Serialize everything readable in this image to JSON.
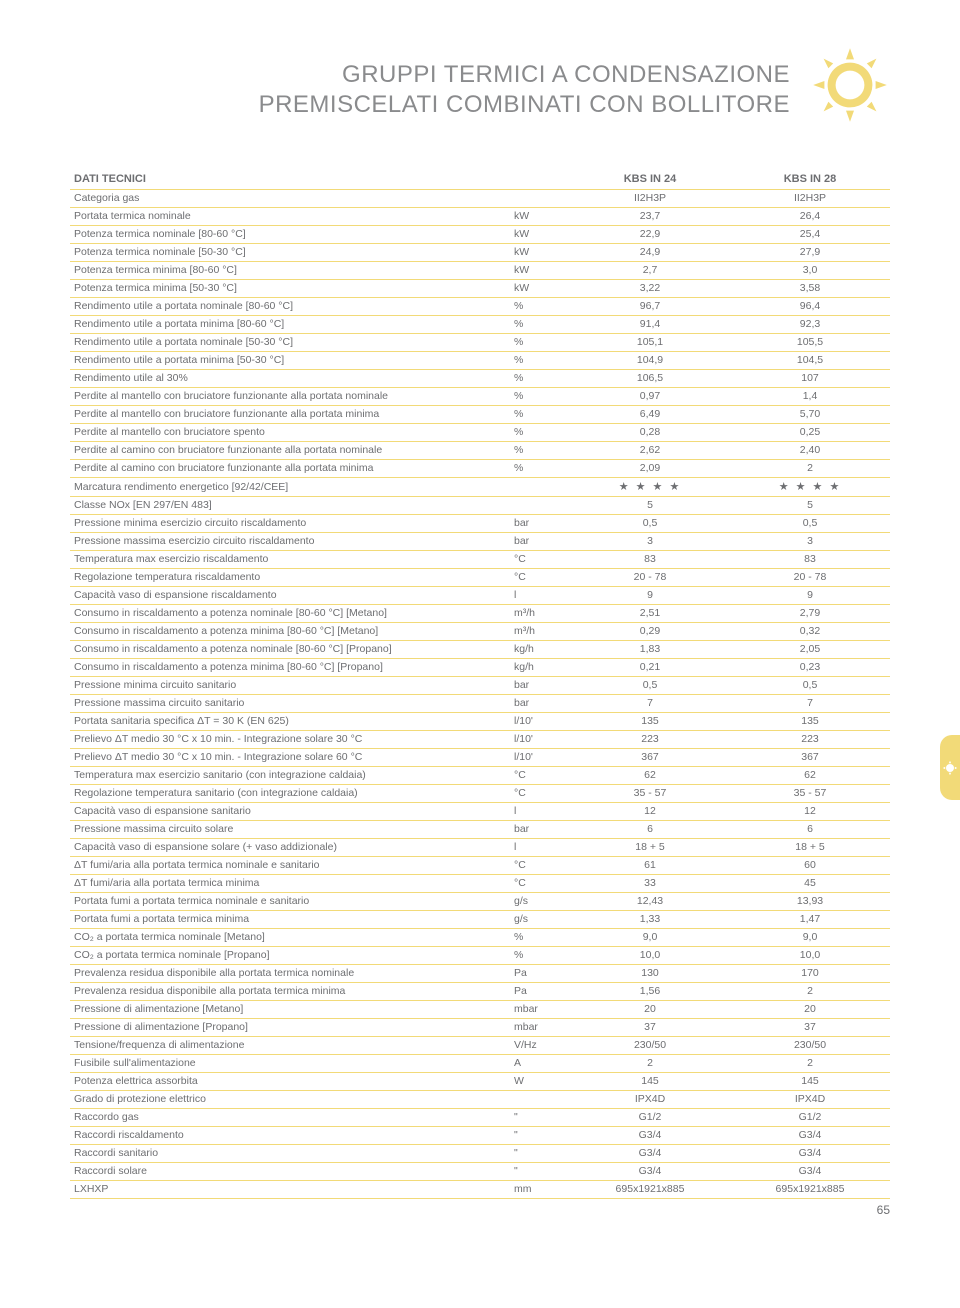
{
  "title_line1": "GRUPPI TERMICI A CONDENSAZIONE",
  "title_line2": "PREMISCELATI COMBINATI CON BOLLITORE",
  "page_number": "65",
  "icon_colors": {
    "fill": "#f2da78",
    "stroke": "#ffffff",
    "rule": "#f2da78"
  },
  "table": {
    "header": {
      "c0": "DATI TECNICI",
      "c1": "",
      "c2": "KBS IN 24",
      "c3": "KBS IN 28"
    },
    "rows": [
      {
        "label": "Categoria gas",
        "unit": "",
        "v1": "II2H3P",
        "v2": "II2H3P"
      },
      {
        "label": "Portata termica nominale",
        "unit": "kW",
        "v1": "23,7",
        "v2": "26,4"
      },
      {
        "label": "Potenza termica nominale [80-60 °C]",
        "unit": "kW",
        "v1": "22,9",
        "v2": "25,4"
      },
      {
        "label": "Potenza termica nominale [50-30 °C]",
        "unit": "kW",
        "v1": "24,9",
        "v2": "27,9"
      },
      {
        "label": "Potenza termica minima [80-60 °C]",
        "unit": "kW",
        "v1": "2,7",
        "v2": "3,0"
      },
      {
        "label": "Potenza termica minima [50-30 °C]",
        "unit": "kW",
        "v1": "3,22",
        "v2": "3,58"
      },
      {
        "label": "Rendimento utile a portata nominale [80-60 °C]",
        "unit": "%",
        "v1": "96,7",
        "v2": "96,4"
      },
      {
        "label": "Rendimento utile a portata minima [80-60 °C]",
        "unit": "%",
        "v1": "91,4",
        "v2": "92,3"
      },
      {
        "label": "Rendimento utile a portata nominale [50-30 °C]",
        "unit": "%",
        "v1": "105,1",
        "v2": "105,5"
      },
      {
        "label": "Rendimento utile a portata minima [50-30 °C]",
        "unit": "%",
        "v1": "104,9",
        "v2": "104,5"
      },
      {
        "label": "Rendimento utile al 30%",
        "unit": "%",
        "v1": "106,5",
        "v2": "107"
      },
      {
        "label": "Perdite al mantello con bruciatore funzionante alla portata nominale",
        "unit": "%",
        "v1": "0,97",
        "v2": "1,4"
      },
      {
        "label": "Perdite al mantello con bruciatore funzionante alla portata minima",
        "unit": "%",
        "v1": "6,49",
        "v2": "5,70"
      },
      {
        "label": "Perdite al mantello con bruciatore spento",
        "unit": "%",
        "v1": "0,28",
        "v2": "0,25"
      },
      {
        "label": "Perdite al camino con bruciatore funzionante alla portata nominale",
        "unit": "%",
        "v1": "2,62",
        "v2": "2,40"
      },
      {
        "label": "Perdite al camino con bruciatore funzionante alla portata minima",
        "unit": "%",
        "v1": "2,09",
        "v2": "2"
      },
      {
        "label": "Marcatura rendimento energetico [92/42/CEE]",
        "unit": "",
        "v1": "★ ★ ★ ★",
        "v2": "★ ★ ★ ★",
        "stars": true
      },
      {
        "label": "Classe NOx [EN 297/EN 483]",
        "unit": "",
        "v1": "5",
        "v2": "5"
      },
      {
        "label": "Pressione minima esercizio circuito riscaldamento",
        "unit": "bar",
        "v1": "0,5",
        "v2": "0,5"
      },
      {
        "label": "Pressione massima esercizio circuito riscaldamento",
        "unit": "bar",
        "v1": "3",
        "v2": "3"
      },
      {
        "label": "Temperatura max esercizio riscaldamento",
        "unit": "°C",
        "v1": "83",
        "v2": "83"
      },
      {
        "label": "Regolazione temperatura riscaldamento",
        "unit": "°C",
        "v1": "20 - 78",
        "v2": "20 - 78"
      },
      {
        "label": "Capacità vaso di espansione riscaldamento",
        "unit": "l",
        "v1": "9",
        "v2": "9"
      },
      {
        "label": "Consumo in riscaldamento a potenza nominale [80-60 °C] [Metano]",
        "unit": "m³/h",
        "v1": "2,51",
        "v2": "2,79"
      },
      {
        "label": "Consumo in riscaldamento a potenza minima [80-60 °C] [Metano]",
        "unit": "m³/h",
        "v1": "0,29",
        "v2": "0,32"
      },
      {
        "label": "Consumo in riscaldamento a potenza nominale [80-60 °C] [Propano]",
        "unit": "kg/h",
        "v1": "1,83",
        "v2": "2,05"
      },
      {
        "label": "Consumo in riscaldamento a potenza minima [80-60 °C] [Propano]",
        "unit": "kg/h",
        "v1": "0,21",
        "v2": "0,23"
      },
      {
        "label": "Pressione minima circuito sanitario",
        "unit": "bar",
        "v1": "0,5",
        "v2": "0,5"
      },
      {
        "label": "Pressione massima circuito sanitario",
        "unit": "bar",
        "v1": "7",
        "v2": "7"
      },
      {
        "label": "Portata sanitaria specifica ΔT = 30 K (EN 625)",
        "unit": "l/10'",
        "v1": "135",
        "v2": "135"
      },
      {
        "label": "Prelievo ΔT medio 30 °C x 10 min. - Integrazione solare 30 °C",
        "unit": "l/10'",
        "v1": "223",
        "v2": "223"
      },
      {
        "label": "Prelievo ΔT medio 30 °C x 10 min. - Integrazione solare 60 °C",
        "unit": "l/10'",
        "v1": "367",
        "v2": "367"
      },
      {
        "label": "Temperatura max esercizio sanitario (con integrazione caldaia)",
        "unit": "°C",
        "v1": "62",
        "v2": "62"
      },
      {
        "label": "Regolazione temperatura sanitario (con integrazione caldaia)",
        "unit": "°C",
        "v1": "35 - 57",
        "v2": "35 - 57"
      },
      {
        "label": "Capacità vaso di espansione sanitario",
        "unit": "l",
        "v1": "12",
        "v2": "12"
      },
      {
        "label": "Pressione massima circuito solare",
        "unit": "bar",
        "v1": "6",
        "v2": "6"
      },
      {
        "label": "Capacità vaso di espansione solare (+ vaso addizionale)",
        "unit": "l",
        "v1": "18 + 5",
        "v2": "18 + 5"
      },
      {
        "label": "ΔT fumi/aria alla portata termica nominale e sanitario",
        "unit": "°C",
        "v1": "61",
        "v2": "60"
      },
      {
        "label": "ΔT fumi/aria alla portata termica minima",
        "unit": "°C",
        "v1": "33",
        "v2": "45"
      },
      {
        "label": "Portata fumi a portata termica nominale e sanitario",
        "unit": "g/s",
        "v1": "12,43",
        "v2": "13,93"
      },
      {
        "label": "Portata fumi a portata termica minima",
        "unit": "g/s",
        "v1": "1,33",
        "v2": "1,47"
      },
      {
        "label": "CO₂ a portata termica nominale [Metano]",
        "unit": "%",
        "v1": "9,0",
        "v2": "9,0"
      },
      {
        "label": "CO₂ a portata termica nominale [Propano]",
        "unit": "%",
        "v1": "10,0",
        "v2": "10,0"
      },
      {
        "label": "Prevalenza residua disponibile alla portata termica nominale",
        "unit": "Pa",
        "v1": "130",
        "v2": "170"
      },
      {
        "label": "Prevalenza residua disponibile alla portata termica minima",
        "unit": "Pa",
        "v1": "1,56",
        "v2": "2"
      },
      {
        "label": "Pressione di alimentazione [Metano]",
        "unit": "mbar",
        "v1": "20",
        "v2": "20"
      },
      {
        "label": "Pressione di alimentazione [Propano]",
        "unit": "mbar",
        "v1": "37",
        "v2": "37"
      },
      {
        "label": "Tensione/frequenza di alimentazione",
        "unit": "V/Hz",
        "v1": "230/50",
        "v2": "230/50"
      },
      {
        "label": "Fusibile sull'alimentazione",
        "unit": "A",
        "v1": "2",
        "v2": "2"
      },
      {
        "label": "Potenza elettrica assorbita",
        "unit": "W",
        "v1": "145",
        "v2": "145"
      },
      {
        "label": "Grado di protezione elettrico",
        "unit": "",
        "v1": "IPX4D",
        "v2": "IPX4D"
      },
      {
        "label": "Raccordo gas",
        "unit": "\"",
        "v1": "G1/2",
        "v2": "G1/2"
      },
      {
        "label": "Raccordi riscaldamento",
        "unit": "\"",
        "v1": "G3/4",
        "v2": "G3/4"
      },
      {
        "label": "Raccordi sanitario",
        "unit": "\"",
        "v1": "G3/4",
        "v2": "G3/4"
      },
      {
        "label": "Raccordi solare",
        "unit": "\"",
        "v1": "G3/4",
        "v2": "G3/4"
      },
      {
        "label": "LXHXP",
        "unit": "mm",
        "v1": "695x1921x885",
        "v2": "695x1921x885"
      }
    ]
  }
}
